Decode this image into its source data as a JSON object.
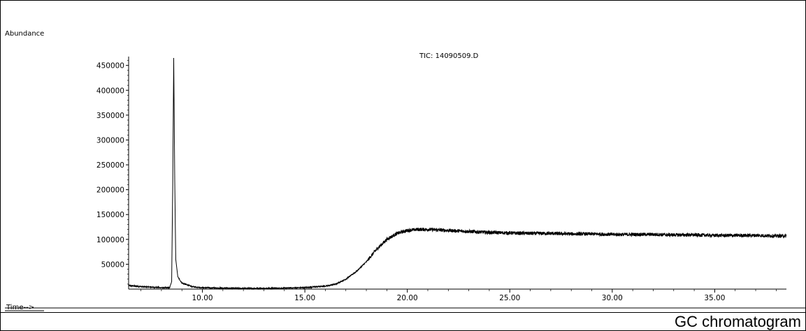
{
  "chart_data": {
    "type": "line",
    "ylabel": "Abundance",
    "xlabel": "Time-->",
    "series_label": "TIC: 14090509.D",
    "xlim": [
      6.4,
      38.5
    ],
    "ylim": [
      0,
      465000
    ],
    "yticks": [
      50000,
      100000,
      150000,
      200000,
      250000,
      300000,
      350000,
      400000,
      450000
    ],
    "ytick_labels": [
      "50000",
      "100000",
      "150000",
      "200000",
      "250000",
      "300000",
      "350000",
      "400000",
      "450000"
    ],
    "xticks": [
      10,
      15,
      20,
      25,
      30,
      35
    ],
    "xtick_labels": [
      "10.00",
      "15.00",
      "20.00",
      "25.00",
      "30.00",
      "35.00"
    ],
    "grid": false,
    "series": [
      {
        "x": [
          6.4,
          7.0,
          7.5,
          8.0,
          8.4,
          8.5,
          8.55,
          8.6,
          8.65,
          8.7,
          8.8,
          9.0,
          9.5,
          10.0,
          11.0,
          12.0,
          13.0,
          14.0,
          15.0,
          16.0,
          16.5,
          17.0,
          17.5,
          18.0,
          18.5,
          19.0,
          19.5,
          20.0,
          20.5,
          21.0,
          22.0,
          23.0,
          24.0,
          25.0,
          26.0,
          27.0,
          28.0,
          29.0,
          30.0,
          31.0,
          32.0,
          33.0,
          34.0,
          35.0,
          36.0,
          37.0,
          38.0,
          38.5
        ],
        "values": [
          7000,
          5000,
          4000,
          3000,
          2500,
          15000,
          200000,
          465000,
          220000,
          60000,
          25000,
          12000,
          5000,
          3000,
          2000,
          1500,
          1500,
          2000,
          3000,
          6000,
          10000,
          20000,
          35000,
          55000,
          80000,
          100000,
          112000,
          118000,
          120000,
          120000,
          118000,
          116000,
          114000,
          113000,
          112000,
          112000,
          111000,
          111000,
          110000,
          110000,
          110000,
          109000,
          109000,
          108000,
          108000,
          108000,
          107000,
          107000
        ]
      }
    ]
  },
  "caption": "GC chromatogram"
}
